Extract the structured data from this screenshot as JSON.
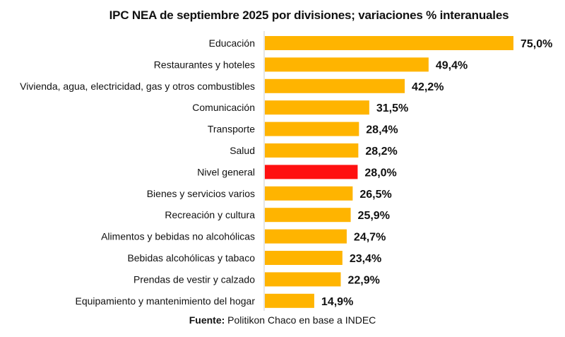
{
  "chart_data": {
    "type": "bar",
    "orientation": "horizontal",
    "title": "IPC NEA de septiembre 2025 por divisiones; variaciones % interanuales",
    "categories": [
      "Educación",
      "Restaurantes y hoteles",
      "Vivienda, agua, electricidad, gas y otros combustibles",
      "Comunicación",
      "Transporte",
      "Salud",
      "Nivel general",
      "Bienes y servicios varios",
      "Recreación y cultura",
      "Alimentos y bebidas no alcohólicas",
      "Bebidas alcohólicas y tabaco",
      "Prendas de vestir y calzado",
      "Equipamiento y mantenimiento del hogar"
    ],
    "values": [
      75.0,
      49.4,
      42.2,
      31.5,
      28.4,
      28.2,
      28.0,
      26.5,
      25.9,
      24.7,
      23.4,
      22.9,
      14.9
    ],
    "labels": [
      "75,0%",
      "49,4%",
      "42,2%",
      "31,5%",
      "28,4%",
      "28,2%",
      "28,0%",
      "26,5%",
      "25,9%",
      "24,7%",
      "23,4%",
      "22,9%",
      "14,9%"
    ],
    "highlight": "Nivel general",
    "xlabel": "",
    "ylabel": "",
    "xlim": [
      0,
      75
    ],
    "grid": false,
    "colors": {
      "bar": "#FFB400",
      "highlight": "#FF1010",
      "axis": "#cccccc"
    }
  },
  "source": {
    "label": "Fuente:",
    "text": " Politikon Chaco en base a INDEC"
  }
}
